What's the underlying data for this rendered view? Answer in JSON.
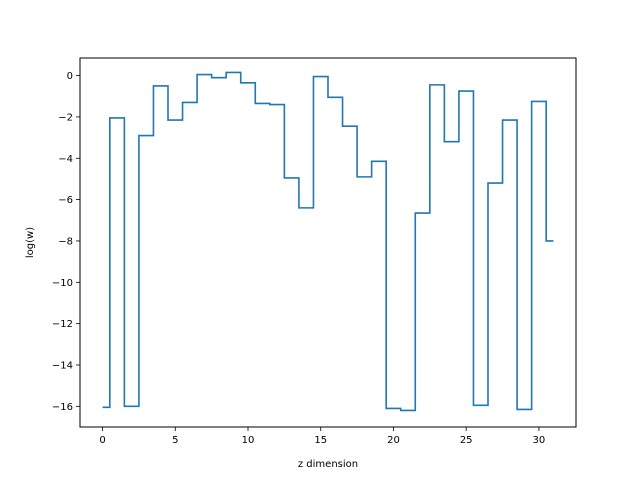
{
  "chart_data": {
    "type": "line",
    "drawstyle": "steps-mid",
    "title": "",
    "xlabel": "z dimension",
    "ylabel": "log(w)",
    "xlim": [
      -1.55,
      32.55
    ],
    "ylim": [
      -17.0,
      0.85
    ],
    "grid": false,
    "line_color": "#1f77b4",
    "xticks": [
      0,
      5,
      10,
      15,
      20,
      25,
      30
    ],
    "yticks": [
      0,
      -2,
      -4,
      -6,
      -8,
      -10,
      -12,
      -14,
      -16
    ],
    "xtick_labels": [
      "0",
      "5",
      "10",
      "15",
      "20",
      "25",
      "30"
    ],
    "ytick_labels": [
      "0",
      "−2",
      "−4",
      "−6",
      "−8",
      "−10",
      "−12",
      "−14",
      "−16"
    ],
    "x": [
      0,
      1,
      2,
      3,
      4,
      5,
      6,
      7,
      8,
      9,
      10,
      11,
      12,
      13,
      14,
      15,
      16,
      17,
      18,
      19,
      20,
      21,
      22,
      23,
      24,
      25,
      26,
      27,
      28,
      29,
      30,
      31
    ],
    "y": [
      -16.05,
      -2.05,
      -16.0,
      -2.9,
      -0.5,
      -2.15,
      -1.3,
      0.05,
      -0.1,
      0.15,
      -0.35,
      -1.35,
      -1.4,
      -4.95,
      -6.4,
      -0.05,
      -1.05,
      -2.45,
      -4.9,
      -4.15,
      -16.1,
      -16.2,
      -6.65,
      -0.45,
      -3.2,
      -0.75,
      -15.95,
      -5.2,
      -2.15,
      -16.15,
      -1.25,
      -8.0
    ]
  }
}
